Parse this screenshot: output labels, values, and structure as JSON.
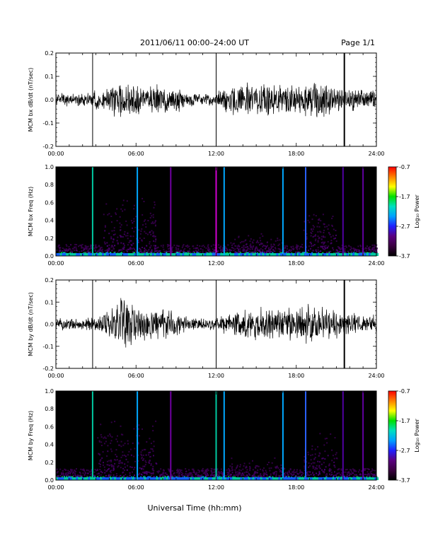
{
  "header": {
    "title": "2011/06/11  00:00–24:00 UT",
    "page": "Page 1/1"
  },
  "footer": {
    "xlabel": "Universal Time (hh:mm)"
  },
  "colors": {
    "trace": "#000000",
    "spec_background": "#000000",
    "colorbar": [
      "#000000",
      "#3a0040",
      "#5a0080",
      "#2020ff",
      "#00a0ff",
      "#00e0c0",
      "#00e000",
      "#ffff00",
      "#ff8000",
      "#ff0000"
    ]
  },
  "chart_data": [
    {
      "type": "line",
      "id": "bx_dbdt",
      "ylabel": "MCM bx dB/dt (nT/sec)",
      "xlim": [
        0,
        24
      ],
      "ylim": [
        -0.2,
        0.2
      ],
      "xtick_labels": [
        "00:00",
        "06:00",
        "12:00",
        "18:00",
        "24:00"
      ],
      "ytick_labels": [
        "-0.2",
        "-0.1",
        "0.0",
        "0.1",
        "0.2"
      ],
      "spikes_hours": [
        2.75,
        12.0,
        21.6
      ],
      "amplitude_envelope": {
        "hours": [
          0,
          2,
          3.5,
          4.5,
          5.5,
          6.5,
          8,
          9,
          10,
          12,
          13,
          15,
          17,
          18.5,
          19.5,
          21,
          22.5,
          24
        ],
        "amp": [
          0.03,
          0.03,
          0.05,
          0.08,
          0.1,
          0.06,
          0.07,
          0.06,
          0.03,
          0.03,
          0.07,
          0.08,
          0.07,
          0.07,
          0.09,
          0.06,
          0.05,
          0.05
        ]
      }
    },
    {
      "type": "heatmap",
      "id": "bx_freq",
      "ylabel": "MCM bx Freq (Hz)",
      "xlim": [
        0,
        24
      ],
      "ylim": [
        0.0,
        1.0
      ],
      "xtick_labels": [
        "00:00",
        "06:00",
        "12:00",
        "18:00",
        "24:00"
      ],
      "ytick_labels": [
        "0.0",
        "0.2",
        "0.4",
        "0.6",
        "0.8",
        "1.0"
      ],
      "colorbar": {
        "label": "Log₁₀ Power",
        "min": -3.7,
        "max": -0.7,
        "tick_labels": [
          "-0.7",
          "-1.7",
          "-2.7",
          "-3.7"
        ]
      },
      "vertical_lines": [
        {
          "hour": 2.75,
          "color": "#00c8a0"
        },
        {
          "hour": 6.1,
          "color": "#00a8ff"
        },
        {
          "hour": 8.6,
          "color": "#7000a0"
        },
        {
          "hour": 12.0,
          "color": "#d000d0"
        },
        {
          "hour": 12.6,
          "color": "#00a8ff"
        },
        {
          "hour": 17.0,
          "color": "#00a8ff"
        },
        {
          "hour": 18.7,
          "color": "#2a60ff"
        },
        {
          "hour": 21.5,
          "color": "#5000a0"
        },
        {
          "hour": 23.0,
          "color": "#6000a0"
        }
      ],
      "activity_blobs": [
        {
          "hours": [
            3.5,
            7.5
          ],
          "fmax": 0.7
        },
        {
          "hours": [
            13.0,
            17.0
          ],
          "fmax": 0.25
        },
        {
          "hours": [
            18.5,
            21.0
          ],
          "fmax": 0.55
        }
      ]
    },
    {
      "type": "line",
      "id": "by_dbdt",
      "ylabel": "MCM by dB/dt (nT/sec)",
      "xlim": [
        0,
        24
      ],
      "ylim": [
        -0.2,
        0.2
      ],
      "xtick_labels": [
        "00:00",
        "06:00",
        "12:00",
        "18:00",
        "24:00"
      ],
      "ytick_labels": [
        "-0.2",
        "-0.1",
        "0.0",
        "0.1",
        "0.2"
      ],
      "spikes_hours": [
        2.75,
        12.0,
        21.6
      ],
      "amplitude_envelope": {
        "hours": [
          0,
          2,
          3.5,
          4.5,
          5.2,
          6.5,
          8,
          9,
          10,
          12,
          13,
          15,
          17,
          18.5,
          19.5,
          21,
          22.5,
          24
        ],
        "amp": [
          0.03,
          0.03,
          0.05,
          0.1,
          0.17,
          0.08,
          0.08,
          0.06,
          0.03,
          0.03,
          0.06,
          0.08,
          0.08,
          0.09,
          0.1,
          0.07,
          0.05,
          0.05
        ]
      }
    },
    {
      "type": "heatmap",
      "id": "by_freq",
      "ylabel": "MCM by Freq (Hz)",
      "xlim": [
        0,
        24
      ],
      "ylim": [
        0.0,
        1.0
      ],
      "xtick_labels": [
        "00:00",
        "06:00",
        "12:00",
        "18:00",
        "24:00"
      ],
      "ytick_labels": [
        "0.0",
        "0.2",
        "0.4",
        "0.6",
        "0.8",
        "1.0"
      ],
      "colorbar": {
        "label": "Log₁₀ Power",
        "min": -3.7,
        "max": -0.7,
        "tick_labels": [
          "-0.7",
          "-1.7",
          "-2.7",
          "-3.7"
        ]
      },
      "vertical_lines": [
        {
          "hour": 2.75,
          "color": "#00c8a0"
        },
        {
          "hour": 6.1,
          "color": "#00a8ff"
        },
        {
          "hour": 8.6,
          "color": "#7000a0"
        },
        {
          "hour": 12.0,
          "color": "#00c8a0"
        },
        {
          "hour": 12.6,
          "color": "#00a8ff"
        },
        {
          "hour": 17.0,
          "color": "#00a8ff"
        },
        {
          "hour": 18.7,
          "color": "#2a60ff"
        },
        {
          "hour": 21.5,
          "color": "#5000a0"
        },
        {
          "hour": 23.0,
          "color": "#6000a0"
        }
      ],
      "activity_blobs": [
        {
          "hours": [
            3.0,
            7.5
          ],
          "fmax": 0.7
        },
        {
          "hours": [
            13.0,
            17.0
          ],
          "fmax": 0.25
        },
        {
          "hours": [
            18.5,
            21.0
          ],
          "fmax": 0.55
        }
      ]
    }
  ]
}
